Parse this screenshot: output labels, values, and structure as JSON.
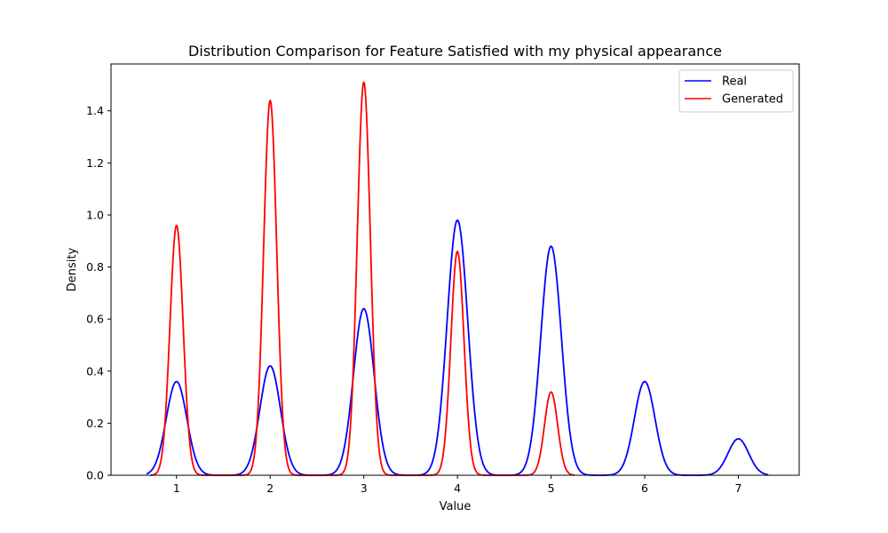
{
  "chart_data": {
    "type": "line",
    "title": "Distribution Comparison for Feature Satisfied with my physical appearance",
    "xlabel": "Value",
    "ylabel": "Density",
    "xlim": [
      0.3,
      7.65
    ],
    "ylim": [
      0.0,
      1.58
    ],
    "xticks": [
      1,
      2,
      3,
      4,
      5,
      6,
      7
    ],
    "yticks": [
      0.0,
      0.2,
      0.4,
      0.6,
      0.8,
      1.0,
      1.2,
      1.4
    ],
    "ytick_labels": [
      "0.0",
      "0.2",
      "0.4",
      "0.6",
      "0.8",
      "1.0",
      "1.2",
      "1.4"
    ],
    "grid": false,
    "legend_position": "top-right",
    "series": [
      {
        "name": "Real",
        "color": "#0000ff",
        "x_range": [
          0.68,
          7.32
        ],
        "peaks": [
          {
            "x": 1,
            "y": 0.36
          },
          {
            "x": 2,
            "y": 0.42
          },
          {
            "x": 3,
            "y": 0.64
          },
          {
            "x": 4,
            "y": 0.98
          },
          {
            "x": 5,
            "y": 0.88
          },
          {
            "x": 6,
            "y": 0.36
          },
          {
            "x": 7,
            "y": 0.14
          }
        ],
        "bandwidth": 0.11
      },
      {
        "name": "Generated",
        "color": "#ff0000",
        "x_range": [
          0.72,
          5.25
        ],
        "peaks": [
          {
            "x": 1,
            "y": 0.96
          },
          {
            "x": 2,
            "y": 1.44
          },
          {
            "x": 3,
            "y": 1.51
          },
          {
            "x": 4,
            "y": 0.86
          },
          {
            "x": 5,
            "y": 0.32
          }
        ],
        "bandwidth": 0.07
      }
    ]
  }
}
